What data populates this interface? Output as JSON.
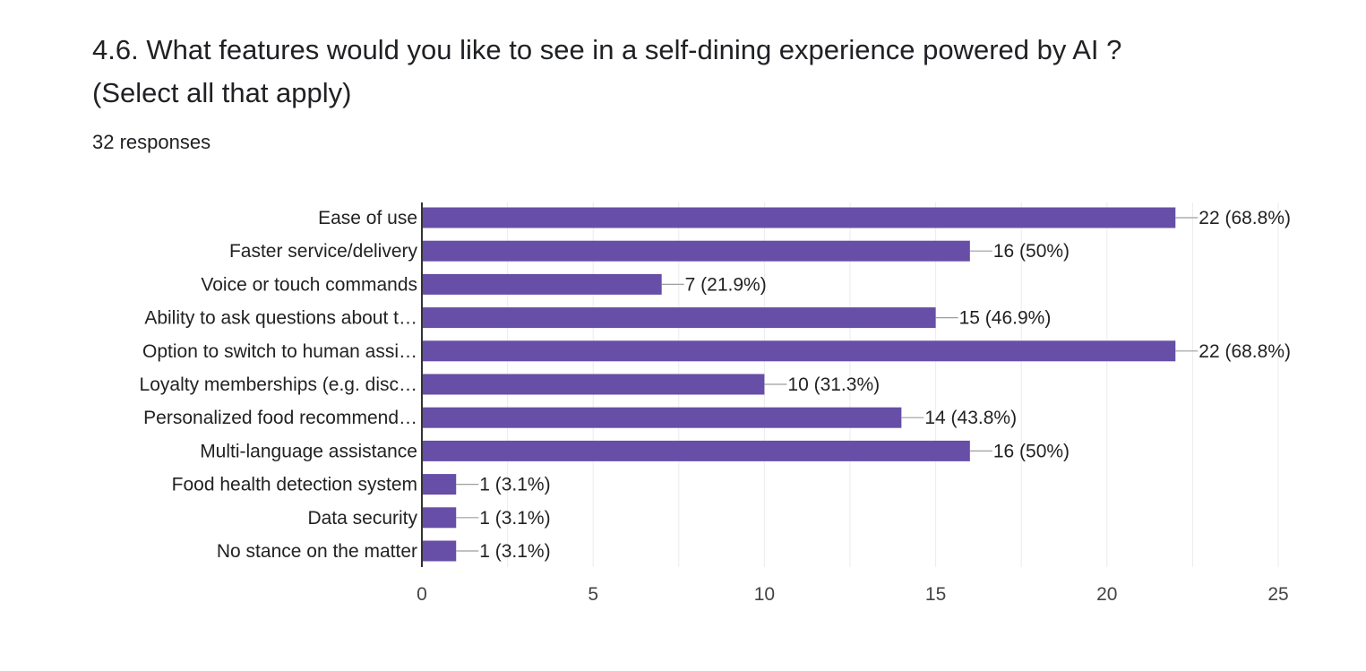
{
  "question": {
    "title": "4.6. What features would you like to see in a self-dining experience powered by AI ? (Select all that apply)",
    "responses": "32 responses"
  },
  "colors": {
    "bar": "#674ea7",
    "grid": "#ebebeb",
    "axis": "#333333",
    "leader": "#9e9e9e"
  },
  "chart_data": {
    "type": "bar",
    "orientation": "horizontal",
    "categories": [
      "Ease of use",
      "Faster service/delivery",
      "Voice or touch commands",
      "Ability to ask questions about t…",
      "Option to switch to human assi…",
      "Loyalty memberships (e.g. disc…",
      "Personalized food recommend…",
      "Multi-language assistance",
      "Food health detection system",
      "Data security",
      "No stance on the matter"
    ],
    "values": [
      22,
      16,
      7,
      15,
      22,
      10,
      14,
      16,
      1,
      1,
      1
    ],
    "data_labels": [
      "22 (68.8%)",
      "16 (50%)",
      "7 (21.9%)",
      "15 (46.9%)",
      "22 (68.8%)",
      "10 (31.3%)",
      "14 (43.8%)",
      "16 (50%)",
      "1 (3.1%)",
      "1 (3.1%)",
      "1 (3.1%)"
    ],
    "xlim": [
      0,
      25
    ],
    "xticks": [
      0,
      5,
      10,
      15,
      20,
      25
    ],
    "grid": true
  }
}
